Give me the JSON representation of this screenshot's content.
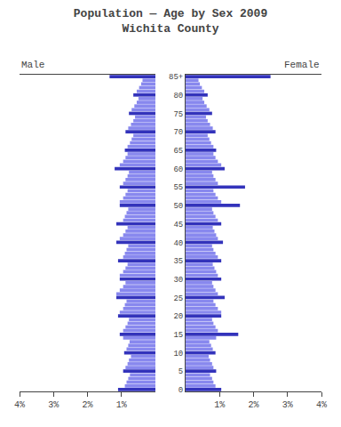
{
  "chart_data": {
    "type": "pyramid",
    "title": "Population — Age by Sex 2009",
    "subtitle": "Wichita County",
    "orientation": "horizontal",
    "categories": [
      "0",
      null,
      null,
      null,
      null,
      "5",
      null,
      null,
      null,
      null,
      "10",
      null,
      null,
      null,
      null,
      "15",
      null,
      null,
      null,
      null,
      "20",
      null,
      null,
      null,
      null,
      "25",
      null,
      null,
      null,
      null,
      "30",
      null,
      null,
      null,
      null,
      "35",
      null,
      null,
      null,
      null,
      "40",
      null,
      null,
      null,
      null,
      "45",
      null,
      null,
      null,
      null,
      "50",
      null,
      null,
      null,
      null,
      "55",
      null,
      null,
      null,
      null,
      "60",
      null,
      null,
      null,
      null,
      "65",
      null,
      null,
      null,
      null,
      "70",
      null,
      null,
      null,
      null,
      "75",
      null,
      null,
      null,
      null,
      "80",
      null,
      null,
      null,
      null,
      "85+"
    ],
    "series": [
      {
        "name": "Male",
        "values": [
          1.1,
          0.9,
          0.85,
          0.8,
          0.75,
          0.95,
          0.88,
          0.82,
          0.78,
          0.72,
          0.92,
          0.85,
          0.8,
          0.76,
          0.95,
          1.05,
          0.95,
          0.88,
          0.82,
          0.78,
          1.1,
          1.05,
          0.95,
          0.9,
          0.85,
          1.15,
          1.15,
          1.05,
          0.95,
          0.88,
          1.05,
          1.05,
          0.95,
          0.88,
          0.82,
          1.1,
          0.95,
          0.9,
          0.85,
          0.8,
          1.15,
          1.05,
          0.95,
          0.88,
          0.82,
          1.15,
          0.95,
          0.9,
          0.85,
          0.8,
          1.05,
          1.05,
          0.95,
          0.88,
          0.82,
          1.05,
          0.95,
          0.88,
          0.82,
          0.78,
          1.2,
          1.05,
          0.95,
          0.88,
          0.82,
          0.9,
          0.82,
          0.75,
          0.7,
          0.65,
          0.88,
          0.8,
          0.72,
          0.65,
          0.6,
          0.78,
          0.7,
          0.62,
          0.55,
          0.5,
          0.65,
          0.55,
          0.48,
          0.42,
          0.38,
          1.35
        ],
        "colors": [
          "#3333bb",
          "#8888ee",
          "#8888ee",
          "#8888ee",
          "#8888ee",
          "#3333bb",
          "#8888ee",
          "#8888ee",
          "#8888ee",
          "#8888ee",
          "#3333bb",
          "#8888ee",
          "#8888ee",
          "#8888ee",
          "#8888ee",
          "#3333bb",
          "#8888ee",
          "#8888ee",
          "#8888ee",
          "#8888ee",
          "#3333bb",
          "#8888ee",
          "#8888ee",
          "#8888ee",
          "#8888ee",
          "#3333bb",
          "#8888ee",
          "#8888ee",
          "#8888ee",
          "#8888ee",
          "#3333bb",
          "#8888ee",
          "#8888ee",
          "#8888ee",
          "#8888ee",
          "#3333bb",
          "#8888ee",
          "#8888ee",
          "#8888ee",
          "#8888ee",
          "#3333bb",
          "#8888ee",
          "#8888ee",
          "#8888ee",
          "#8888ee",
          "#3333bb",
          "#8888ee",
          "#8888ee",
          "#8888ee",
          "#8888ee",
          "#3333bb",
          "#8888ee",
          "#8888ee",
          "#8888ee",
          "#8888ee",
          "#3333bb",
          "#8888ee",
          "#8888ee",
          "#8888ee",
          "#8888ee",
          "#3333bb",
          "#8888ee",
          "#8888ee",
          "#8888ee",
          "#8888ee",
          "#3333bb",
          "#8888ee",
          "#8888ee",
          "#8888ee",
          "#8888ee",
          "#3333bb",
          "#8888ee",
          "#8888ee",
          "#8888ee",
          "#8888ee",
          "#3333bb",
          "#8888ee",
          "#8888ee",
          "#8888ee",
          "#8888ee",
          "#3333bb",
          "#8888ee",
          "#8888ee",
          "#8888ee",
          "#8888ee",
          "#3333bb"
        ]
      },
      {
        "name": "Female",
        "values": [
          1.05,
          0.88,
          0.82,
          0.78,
          0.72,
          0.9,
          0.82,
          0.78,
          0.72,
          0.68,
          0.88,
          0.8,
          0.75,
          0.7,
          0.9,
          1.55,
          0.95,
          0.88,
          0.82,
          0.78,
          1.05,
          1.05,
          0.95,
          0.88,
          0.82,
          1.15,
          0.95,
          0.88,
          0.82,
          0.78,
          1.05,
          0.95,
          0.9,
          0.85,
          0.8,
          1.05,
          0.95,
          0.88,
          0.82,
          0.78,
          1.1,
          0.95,
          0.9,
          0.85,
          0.8,
          1.05,
          0.95,
          0.88,
          0.82,
          0.78,
          1.6,
          1.05,
          0.95,
          0.88,
          0.82,
          1.75,
          0.95,
          0.88,
          0.82,
          0.78,
          1.15,
          1.05,
          0.95,
          0.88,
          0.82,
          0.9,
          0.82,
          0.75,
          0.7,
          0.65,
          0.88,
          0.8,
          0.72,
          0.65,
          0.6,
          0.78,
          0.7,
          0.62,
          0.55,
          0.5,
          0.65,
          0.55,
          0.48,
          0.42,
          0.38,
          2.5
        ],
        "colors": [
          "#3333bb",
          "#8888ee",
          "#8888ee",
          "#8888ee",
          "#8888ee",
          "#3333bb",
          "#8888ee",
          "#8888ee",
          "#8888ee",
          "#8888ee",
          "#3333bb",
          "#8888ee",
          "#8888ee",
          "#8888ee",
          "#8888ee",
          "#3333bb",
          "#8888ee",
          "#8888ee",
          "#8888ee",
          "#8888ee",
          "#3333bb",
          "#8888ee",
          "#8888ee",
          "#8888ee",
          "#8888ee",
          "#3333bb",
          "#8888ee",
          "#8888ee",
          "#8888ee",
          "#8888ee",
          "#3333bb",
          "#8888ee",
          "#8888ee",
          "#8888ee",
          "#8888ee",
          "#3333bb",
          "#8888ee",
          "#8888ee",
          "#8888ee",
          "#8888ee",
          "#3333bb",
          "#8888ee",
          "#8888ee",
          "#8888ee",
          "#8888ee",
          "#3333bb",
          "#8888ee",
          "#8888ee",
          "#8888ee",
          "#8888ee",
          "#3333bb",
          "#8888ee",
          "#8888ee",
          "#8888ee",
          "#8888ee",
          "#3333bb",
          "#8888ee",
          "#8888ee",
          "#8888ee",
          "#8888ee",
          "#3333bb",
          "#8888ee",
          "#8888ee",
          "#8888ee",
          "#8888ee",
          "#3333bb",
          "#8888ee",
          "#8888ee",
          "#8888ee",
          "#8888ee",
          "#3333bb",
          "#8888ee",
          "#8888ee",
          "#8888ee",
          "#8888ee",
          "#3333bb",
          "#8888ee",
          "#8888ee",
          "#8888ee",
          "#8888ee",
          "#3333bb",
          "#8888ee",
          "#8888ee",
          "#8888ee",
          "#8888ee",
          "#3333bb"
        ]
      }
    ],
    "xlim": [
      0,
      4
    ],
    "xticks": [
      {
        "value": 1,
        "label": "1%"
      },
      {
        "value": 2,
        "label": "2%"
      },
      {
        "value": 3,
        "label": "3%"
      },
      {
        "value": 4,
        "label": "4%"
      }
    ],
    "grid": false
  }
}
